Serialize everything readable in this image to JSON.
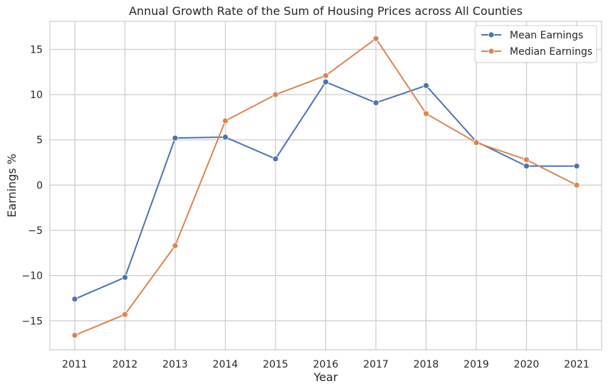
{
  "chart_data": {
    "type": "line",
    "title": "Annual Growth Rate of the Sum of Housing Prices across All Counties",
    "xlabel": "Year",
    "ylabel": "Earnings %",
    "x": [
      2011,
      2012,
      2013,
      2014,
      2015,
      2016,
      2017,
      2018,
      2019,
      2020,
      2021
    ],
    "x_tick_labels": [
      "2011",
      "2012",
      "2013",
      "2014",
      "2015",
      "2016",
      "2017",
      "2018",
      "2019",
      "2020",
      "2021"
    ],
    "ylim": [
      -18.2,
      18.1
    ],
    "y_ticks": [
      -15,
      -10,
      -5,
      0,
      5,
      10,
      15
    ],
    "y_tick_labels": [
      "−15",
      "−10",
      "−5",
      "0",
      "5",
      "10",
      "15"
    ],
    "grid": true,
    "legend_position": "top-right",
    "series": [
      {
        "name": "Mean Earnings",
        "color": "#4c72b0",
        "values": [
          -12.6,
          -10.2,
          5.2,
          5.3,
          2.9,
          11.4,
          9.1,
          11.0,
          4.8,
          2.1,
          2.1
        ]
      },
      {
        "name": "Median Earnings",
        "color": "#dd8452",
        "values": [
          -16.6,
          -14.3,
          -6.7,
          7.1,
          10.0,
          12.1,
          16.2,
          7.9,
          4.7,
          2.8,
          0.0
        ]
      }
    ]
  }
}
